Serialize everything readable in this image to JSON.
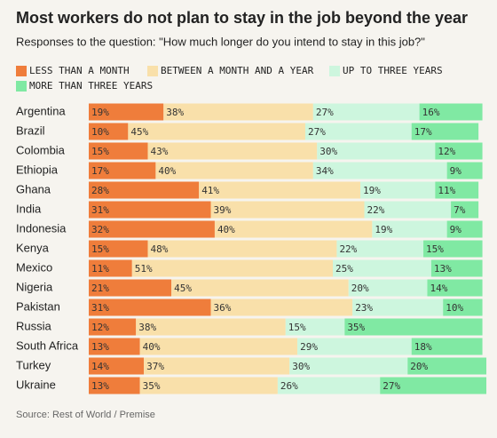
{
  "chart_data": {
    "type": "stacked-bar",
    "title": "Most workers do not plan to stay in the job beyond the year",
    "subtitle": "Responses to the question: \"How much longer do you intend to stay in this job?\"",
    "source": "Source: Rest of World / Premise",
    "categories": [
      "Argentina",
      "Brazil",
      "Colombia",
      "Ethiopia",
      "Ghana",
      "India",
      "Indonesia",
      "Kenya",
      "Mexico",
      "Nigeria",
      "Pakistan",
      "Russia",
      "South Africa",
      "Turkey",
      "Ukraine"
    ],
    "series": [
      {
        "name": "LESS THAN A MONTH",
        "color": "#ef7d3b",
        "values": [
          19,
          10,
          15,
          17,
          28,
          31,
          32,
          15,
          11,
          21,
          31,
          12,
          13,
          14,
          13
        ],
        "value_labels": [
          "19%",
          "10%",
          "15%",
          "17%",
          "28%",
          "31%",
          "32%",
          "15%",
          "11%",
          "21%",
          "31%",
          "12%",
          "13%",
          "14%",
          "13%"
        ]
      },
      {
        "name": "BETWEEN A MONTH AND A YEAR",
        "color": "#f9e0aa",
        "values": [
          38,
          45,
          43,
          40,
          41,
          39,
          40,
          48,
          51,
          45,
          36,
          38,
          40,
          37,
          35
        ],
        "value_labels": [
          "38%",
          "45%",
          "43%",
          "40%",
          "41%",
          "39%",
          "40%",
          "48%",
          "51%",
          "45%",
          "36%",
          "38%",
          "40%",
          "37%",
          "35%"
        ]
      },
      {
        "name": "UP TO THREE YEARS",
        "color": "#cdf6de",
        "values": [
          27,
          27,
          30,
          34,
          19,
          22,
          19,
          22,
          25,
          20,
          23,
          15,
          29,
          30,
          26
        ],
        "value_labels": [
          "27%",
          "27%",
          "30%",
          "34%",
          "19%",
          "22%",
          "19%",
          "22%",
          "25%",
          "20%",
          "23%",
          "15%",
          "29%",
          "30%",
          "26%"
        ]
      },
      {
        "name": "MORE THAN THREE YEARS",
        "color": "#80e9a3",
        "values": [
          16,
          17,
          12,
          9,
          11,
          7,
          9,
          15,
          13,
          14,
          10,
          35,
          18,
          20,
          27
        ],
        "value_labels": [
          "16%",
          "17%",
          "12%",
          "9%",
          "11%",
          "7%",
          "9%",
          "15%",
          "13%",
          "14%",
          "10%",
          "35%",
          "18%",
          "20%",
          "27%"
        ]
      }
    ]
  }
}
